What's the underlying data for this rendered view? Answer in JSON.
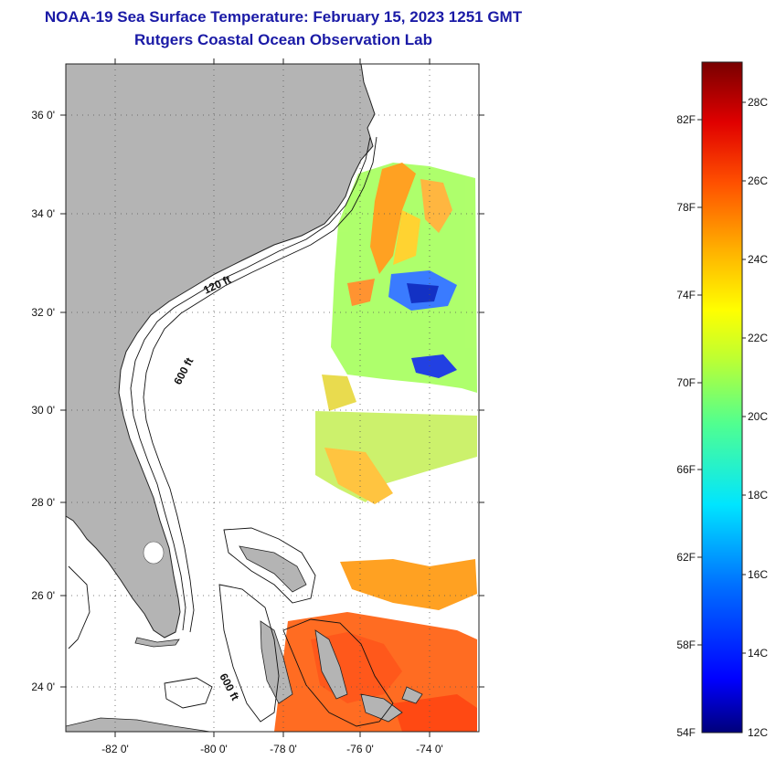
{
  "title": {
    "line1": "NOAA-19 Sea Surface Temperature:  February 15, 2023 1251 GMT",
    "line2": "Rutgers Coastal Ocean Observation Lab"
  },
  "map": {
    "lon_labels": [
      "-82 0'",
      "-80 0'",
      "-78 0'",
      "-76 0'",
      "-74 0'"
    ],
    "lat_labels": [
      "36 0'",
      "34 0'",
      "32 0'",
      "30 0'",
      "28 0'",
      "26 0'",
      "24 0'"
    ],
    "contour_labels": [
      "120 ft",
      "600 ft",
      "600 ft"
    ],
    "land_color": "#b4b4b4",
    "ocean_color": "#ffffff"
  },
  "colorbar": {
    "fahrenheit": [
      "82F",
      "78F",
      "74F",
      "70F",
      "66F",
      "62F",
      "58F",
      "54F"
    ],
    "celsius": [
      "28C",
      "26C",
      "24C",
      "22C",
      "20C",
      "18C",
      "16C",
      "14C",
      "12C"
    ],
    "min_c": 12,
    "max_c": 29.5
  }
}
